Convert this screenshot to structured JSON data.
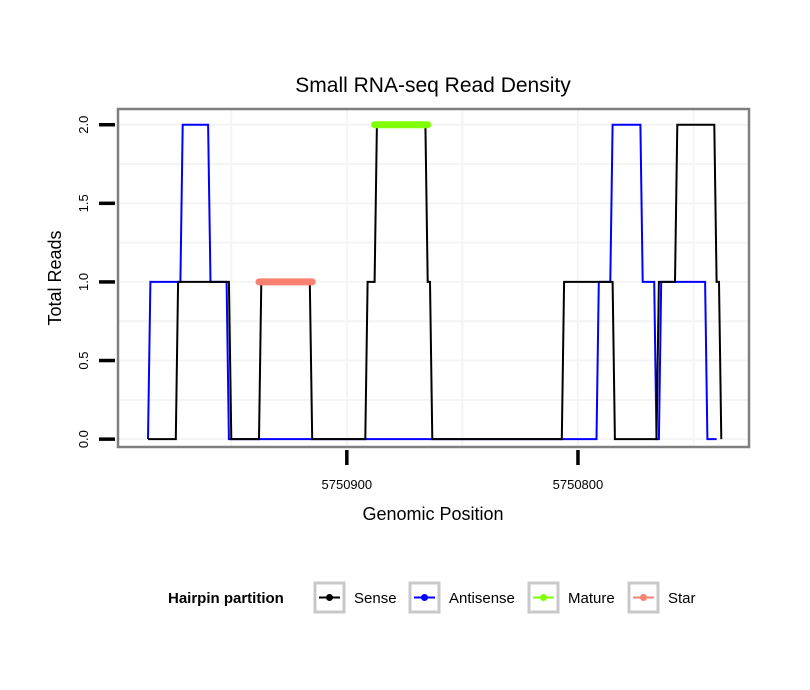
{
  "chart_data": {
    "type": "line",
    "title": "Small RNA-seq Read Density",
    "xlabel": "Genomic Position",
    "ylabel": "Total Reads",
    "x_reversed": true,
    "xlim": [
      5750999,
      5750726
    ],
    "ylim": [
      -0.05,
      2.1
    ],
    "x_ticks": [
      5750900,
      5750800
    ],
    "x_tick_labels": [
      "5750900",
      "5750800"
    ],
    "y_ticks": [
      0.0,
      0.5,
      1.0,
      1.5,
      2.0
    ],
    "y_tick_labels": [
      "0.0",
      "0.5",
      "1.0",
      "1.5",
      "2.0"
    ],
    "grid": true,
    "legend": {
      "title": "Hairpin partition",
      "placement": "bottom",
      "entries": [
        {
          "name": "Sense",
          "color": "#000000"
        },
        {
          "name": "Antisense",
          "color": "#0000ff"
        },
        {
          "name": "Mature",
          "color": "#7fff00"
        },
        {
          "name": "Star",
          "color": "#fa8072"
        }
      ]
    },
    "series": [
      {
        "name": "Sense",
        "color": "#000000",
        "points": [
          [
            5750986,
            0
          ],
          [
            5750974,
            0
          ],
          [
            5750973,
            1
          ],
          [
            5750951,
            1
          ],
          [
            5750950,
            0
          ],
          [
            5750938,
            0
          ],
          [
            5750937,
            1
          ],
          [
            5750916,
            1
          ],
          [
            5750915,
            0
          ],
          [
            5750892,
            0
          ],
          [
            5750891,
            1
          ],
          [
            5750888,
            1
          ],
          [
            5750887,
            2
          ],
          [
            5750866,
            2
          ],
          [
            5750865,
            1
          ],
          [
            5750864,
            1
          ],
          [
            5750863,
            0
          ],
          [
            5750807,
            0
          ],
          [
            5750806,
            1
          ],
          [
            5750785,
            1
          ],
          [
            5750784,
            0
          ],
          [
            5750766,
            0
          ],
          [
            5750765,
            1
          ],
          [
            5750758,
            1
          ],
          [
            5750757,
            2
          ],
          [
            5750741,
            2
          ],
          [
            5750740,
            1
          ],
          [
            5750739,
            1
          ],
          [
            5750738,
            0
          ]
        ]
      },
      {
        "name": "Antisense",
        "color": "#0000ff",
        "points": [
          [
            5750986,
            0
          ],
          [
            5750985,
            1
          ],
          [
            5750972,
            1
          ],
          [
            5750971,
            2
          ],
          [
            5750960,
            2
          ],
          [
            5750959,
            1
          ],
          [
            5750952,
            1
          ],
          [
            5750951,
            0
          ],
          [
            5750808,
            0
          ],
          [
            5750792,
            0
          ],
          [
            5750791,
            1
          ],
          [
            5750786,
            1
          ],
          [
            5750785,
            2
          ],
          [
            5750773,
            2
          ],
          [
            5750772,
            1
          ],
          [
            5750767,
            1
          ],
          [
            5750766,
            0
          ],
          [
            5750765,
            0
          ],
          [
            5750764,
            1
          ],
          [
            5750745,
            1
          ],
          [
            5750744,
            0
          ],
          [
            5750740,
            0
          ]
        ]
      },
      {
        "name": "Mature",
        "color": "#7fff00",
        "points": [
          [
            5750888,
            2
          ],
          [
            5750865,
            2
          ]
        ]
      },
      {
        "name": "Star",
        "color": "#fa8072",
        "points": [
          [
            5750938,
            1
          ],
          [
            5750915,
            1
          ]
        ]
      }
    ]
  }
}
